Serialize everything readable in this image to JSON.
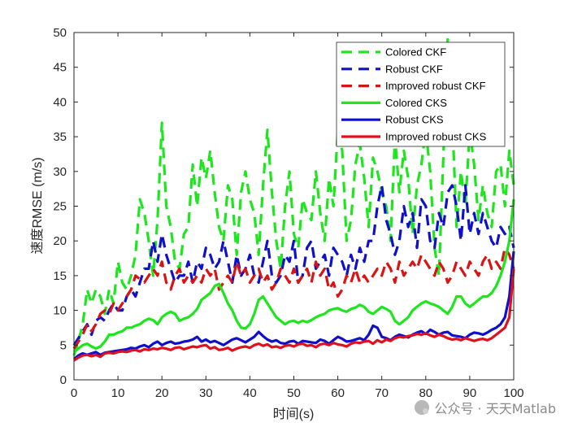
{
  "chart_data": {
    "type": "line",
    "xlabel": "时间(s)",
    "ylabel": "速度RMSE (m/s)",
    "xlim": [
      0,
      100
    ],
    "ylim": [
      0,
      50
    ],
    "xticks": [
      0,
      10,
      20,
      30,
      40,
      50,
      60,
      70,
      80,
      90,
      100
    ],
    "yticks": [
      0,
      5,
      10,
      15,
      20,
      25,
      30,
      35,
      40,
      45,
      50
    ],
    "grid": false,
    "legend_position": "top-right",
    "x": [
      0,
      1,
      2,
      3,
      4,
      5,
      6,
      7,
      8,
      9,
      10,
      11,
      12,
      13,
      14,
      15,
      16,
      17,
      18,
      19,
      20,
      21,
      22,
      23,
      24,
      25,
      26,
      27,
      28,
      29,
      30,
      31,
      32,
      33,
      34,
      35,
      36,
      37,
      38,
      39,
      40,
      41,
      42,
      43,
      44,
      45,
      46,
      47,
      48,
      49,
      50,
      51,
      52,
      53,
      54,
      55,
      56,
      57,
      58,
      59,
      60,
      61,
      62,
      63,
      64,
      65,
      66,
      67,
      68,
      69,
      70,
      71,
      72,
      73,
      74,
      75,
      76,
      77,
      78,
      79,
      80,
      81,
      82,
      83,
      84,
      85,
      86,
      87,
      88,
      89,
      90,
      91,
      92,
      93,
      94,
      95,
      96,
      97,
      98,
      99,
      100
    ],
    "series": [
      {
        "name": "Colored CKF",
        "color": "#1ee61e",
        "dash": "dashed",
        "values": [
          3.5,
          5.5,
          8,
          13,
          11,
          13,
          12,
          9.5,
          13,
          11,
          17,
          14,
          13,
          15,
          18,
          26,
          24,
          20,
          15,
          23,
          37,
          25,
          22,
          17,
          16,
          21,
          22,
          31,
          25,
          32,
          29,
          33,
          27,
          22,
          20,
          28,
          26,
          18,
          27,
          30,
          26,
          24,
          18,
          28,
          36,
          27,
          20,
          16,
          25,
          30,
          21,
          19,
          26,
          24,
          23,
          30,
          24,
          20,
          29,
          25,
          36,
          33,
          20,
          23,
          31,
          34,
          29,
          22,
          32,
          30,
          27,
          25,
          20,
          35,
          27,
          33,
          29,
          21,
          28,
          31,
          36,
          30,
          19,
          15,
          32,
          49,
          38,
          22,
          30,
          25,
          36,
          31,
          23,
          28,
          24,
          22,
          30,
          31,
          25,
          33,
          28
        ]
      },
      {
        "name": "Robust CKF",
        "color": "#1010c8",
        "dash": "dashed",
        "values": [
          5,
          6,
          7,
          8,
          6.5,
          8.5,
          9,
          8.5,
          10,
          11,
          10,
          10,
          12,
          13,
          12,
          14,
          16,
          16,
          20,
          17,
          21,
          18,
          16,
          14,
          15,
          15,
          17,
          14,
          17,
          16,
          19,
          18,
          16,
          17,
          20,
          17,
          14,
          18,
          15,
          16,
          18,
          15,
          14,
          17,
          20,
          15,
          14,
          15,
          18,
          17,
          20,
          14,
          15,
          19,
          20,
          16,
          17,
          18,
          15,
          19,
          18,
          17,
          15,
          18,
          16,
          19,
          17,
          20,
          20,
          25,
          28,
          23,
          21,
          18,
          20,
          25,
          22,
          24,
          19,
          26,
          25,
          20,
          19,
          24,
          22,
          27,
          28,
          25,
          20,
          28,
          21,
          24,
          21,
          24,
          22,
          20,
          19,
          22,
          21,
          22,
          19
        ]
      },
      {
        "name": "Improved robust CKF",
        "color": "#d81414",
        "dash": "dashed",
        "values": [
          4.5,
          5.5,
          6.5,
          8,
          7,
          8,
          9.5,
          10,
          9.5,
          11,
          10,
          11,
          12,
          13,
          15,
          14.5,
          14,
          15,
          16,
          15,
          17,
          14,
          13,
          15,
          16,
          14,
          15,
          14,
          15,
          14,
          16,
          15,
          16,
          13,
          14,
          15,
          14,
          17,
          15,
          16,
          14,
          15,
          16,
          14,
          15,
          13,
          14,
          16,
          15,
          14,
          16,
          14,
          15,
          16,
          14,
          17,
          15,
          16,
          13,
          14,
          12,
          13,
          15,
          14,
          16,
          14,
          15,
          14,
          15,
          16,
          15,
          17,
          16,
          14,
          17,
          15,
          16,
          17,
          16,
          18,
          17,
          16,
          15,
          17,
          16,
          14,
          15,
          17,
          16,
          15,
          17,
          16,
          15,
          17,
          18,
          16,
          17,
          16,
          19,
          18,
          16
        ]
      },
      {
        "name": "Colored CKS",
        "color": "#1ee61e",
        "dash": "solid",
        "values": [
          4,
          4.5,
          5,
          5.2,
          4.8,
          4.5,
          4.8,
          5.5,
          6.5,
          6.5,
          6.8,
          7,
          7.5,
          7.5,
          7.8,
          8,
          8.5,
          8.8,
          8.6,
          8,
          9,
          9.5,
          9.8,
          9.5,
          8.5,
          8.8,
          9,
          9.5,
          10.2,
          11.5,
          12,
          12.5,
          13.5,
          13.8,
          12.5,
          11,
          10,
          8.5,
          7.5,
          7.4,
          8,
          9.5,
          11.5,
          12,
          11,
          10,
          9,
          8.5,
          8,
          8.4,
          8.5,
          8.2,
          8.5,
          8.3,
          8.6,
          9,
          9.3,
          9.5,
          10,
          10.2,
          10.3,
          10,
          9.8,
          10.2,
          10.4,
          10.8,
          10.5,
          9.8,
          9.5,
          10,
          10.5,
          10.2,
          9.8,
          8.5,
          8,
          8.5,
          9,
          10,
          10.5,
          11,
          11.3,
          11,
          10.8,
          10.5,
          10,
          9.5,
          10.5,
          12,
          12,
          11,
          10.5,
          11,
          11.5,
          12,
          12,
          12.5,
          13.5,
          15,
          17,
          20,
          26
        ]
      },
      {
        "name": "Robust CKS",
        "color": "#1010c8",
        "dash": "solid",
        "values": [
          3,
          3.5,
          3.8,
          3.6,
          3.8,
          4,
          3.6,
          3.9,
          4,
          4.1,
          4.2,
          4.3,
          4.4,
          4.6,
          4.5,
          4.8,
          5,
          4.7,
          5.2,
          5.5,
          5,
          5.3,
          5.5,
          5.2,
          5.3,
          5.5,
          5.6,
          5.8,
          6.2,
          5.5,
          5.8,
          5.4,
          5.6,
          5.3,
          5,
          5.4,
          5.8,
          6,
          5.7,
          5.4,
          5.8,
          6.2,
          6.9,
          6.3,
          5.8,
          5.5,
          5.7,
          5.3,
          5.2,
          5.5,
          5.6,
          5.2,
          5.6,
          5.5,
          5.4,
          5.3,
          5.8,
          5.6,
          5.2,
          5.7,
          6.2,
          5.9,
          5.5,
          5.6,
          5.8,
          6,
          5.7,
          6.5,
          7.8,
          7.5,
          6.2,
          6,
          5.7,
          6.2,
          6.5,
          6.3,
          6.1,
          6.5,
          6.8,
          7,
          6.6,
          7.2,
          6.9,
          6.5,
          6.8,
          6.9,
          6.4,
          6.3,
          6.2,
          6,
          6.5,
          6.8,
          6.7,
          6.5,
          6.8,
          7.2,
          7.5,
          8,
          9,
          12,
          18.5
        ]
      },
      {
        "name": "Improved robust CKS",
        "color": "#e0101c",
        "dash": "solid",
        "values": [
          2.8,
          3.2,
          3.5,
          3.6,
          3.4,
          3.6,
          3.3,
          3.8,
          3.9,
          3.8,
          4,
          4.1,
          4,
          4.2,
          4.3,
          4.1,
          4.4,
          4.3,
          4.5,
          4.4,
          4.6,
          4.5,
          4.3,
          4.6,
          4.7,
          4.4,
          4.6,
          4.8,
          4.7,
          4.9,
          5,
          4.5,
          4.7,
          4.3,
          4.4,
          4.6,
          4.2,
          4.5,
          4.7,
          4.8,
          4.6,
          5,
          5.2,
          4.9,
          5.1,
          4.7,
          4.8,
          4.6,
          4.9,
          5,
          4.8,
          5.1,
          5.2,
          4.9,
          5,
          4.7,
          5.1,
          5.2,
          5,
          5.3,
          5.1,
          5,
          4.8,
          5.2,
          5.4,
          5.3,
          5.5,
          5.6,
          5.2,
          5.7,
          5.4,
          5.8,
          5.6,
          6,
          6.2,
          6.1,
          6.3,
          6.4,
          6.6,
          6.5,
          6.7,
          6.4,
          6.2,
          6.5,
          6.3,
          6,
          5.8,
          5.9,
          5.7,
          6,
          5.8,
          5.6,
          5.8,
          5.9,
          5.7,
          6,
          6.5,
          7,
          7.5,
          9,
          16
        ]
      }
    ]
  },
  "watermark": {
    "text": "公众号 · 天天Matlab",
    "icon": "wechat-icon"
  }
}
